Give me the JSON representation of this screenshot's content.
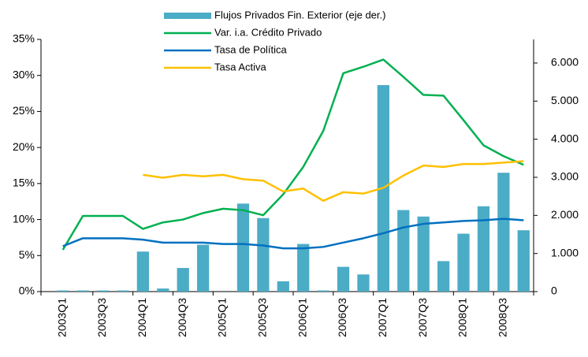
{
  "chart_data": {
    "type": "bar",
    "categories": [
      "2003Q1",
      null,
      "2003Q3",
      null,
      "2004Q1",
      null,
      "2004Q3",
      null,
      "2005Q1",
      null,
      "2005Q3",
      null,
      "2006Q1",
      null,
      "2006Q3",
      null,
      "2007Q1",
      null,
      "2007Q3",
      null,
      "2008Q1",
      null,
      "2008Q3",
      null
    ],
    "series": [
      {
        "name": "Flujos Privados Fin. Exterior (eje der.)",
        "type": "bar",
        "axis": "y2",
        "color": "#4bacc6",
        "values": [
          30,
          30,
          30,
          30,
          1050,
          80,
          620,
          1230,
          0,
          2310,
          1930,
          270,
          1250,
          30,
          650,
          450,
          5420,
          2140,
          1970,
          800,
          1520,
          2240,
          3120,
          1610
        ]
      },
      {
        "name": "Var. i.a. Crédito Privado",
        "type": "line",
        "color": "#00b050",
        "values": [
          5.8,
          10.5,
          10.5,
          10.5,
          8.7,
          9.6,
          10.0,
          10.9,
          11.5,
          11.3,
          10.6,
          13.5,
          17.3,
          22.3,
          30.3,
          31.2,
          32.2,
          29.8,
          27.3,
          27.2,
          23.8,
          20.3,
          18.8,
          17.6
        ]
      },
      {
        "name": "Tasa de Política",
        "type": "line",
        "color": "#0070c0",
        "values": [
          6.3,
          7.4,
          7.4,
          7.4,
          7.2,
          6.8,
          6.8,
          6.8,
          6.6,
          6.6,
          6.4,
          6.0,
          6.0,
          6.2,
          6.8,
          7.4,
          8.1,
          8.9,
          9.4,
          9.6,
          9.8,
          9.9,
          10.1,
          9.9
        ]
      },
      {
        "name": "Tasa Activa",
        "type": "line",
        "color": "#ffc000",
        "values": [
          null,
          null,
          null,
          null,
          16.2,
          15.8,
          16.2,
          16.0,
          16.2,
          15.6,
          15.4,
          13.9,
          14.3,
          12.6,
          13.8,
          13.6,
          14.4,
          16.1,
          17.5,
          17.3,
          17.7,
          17.7,
          17.9,
          18.1
        ]
      }
    ],
    "ylim": [
      0,
      35
    ],
    "yticks": [
      {
        "value": 0,
        "label": "0%"
      },
      {
        "value": 5,
        "label": "5%"
      },
      {
        "value": 10,
        "label": "10%"
      },
      {
        "value": 15,
        "label": "15%"
      },
      {
        "value": 20,
        "label": "20%"
      },
      {
        "value": 25,
        "label": "25%"
      },
      {
        "value": 30,
        "label": "30%"
      },
      {
        "value": 35,
        "label": "35%"
      }
    ],
    "y2lim": [
      0,
      6620
    ],
    "y2ticks": [
      0,
      {
        "value": 1000,
        "label": "1.000"
      },
      {
        "value": 2000,
        "label": "2.000"
      },
      {
        "value": 3000,
        "label": "3.000"
      },
      {
        "value": 4000,
        "label": "4.000"
      },
      {
        "value": 5000,
        "label": "5.000"
      },
      {
        "value": 6000,
        "label": "6.000"
      }
    ],
    "grid": false
  }
}
